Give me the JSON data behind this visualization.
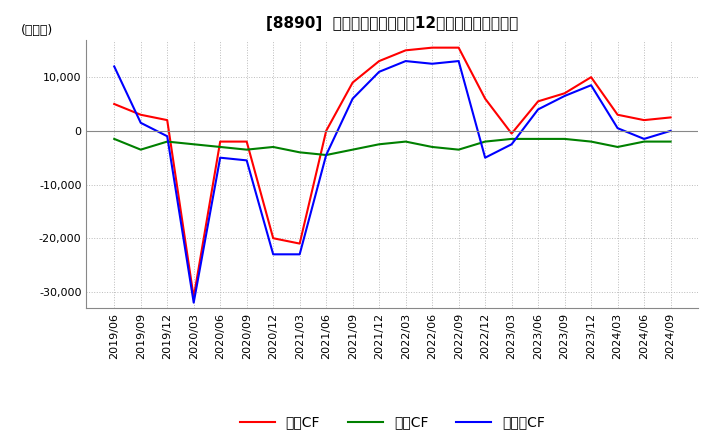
{
  "title": "[8890]  キャッシュフローの12か月移動合計の推移",
  "ylabel": "(百万円)",
  "ylim": [
    -33000,
    17000
  ],
  "yticks": [
    -30000,
    -20000,
    -10000,
    0,
    10000
  ],
  "line_colors": {
    "営業CF": "#ff0000",
    "投資CF": "#008000",
    "フリーCF": "#0000ff"
  },
  "dates": [
    "2019/06",
    "2019/09",
    "2019/12",
    "2020/03",
    "2020/06",
    "2020/09",
    "2020/12",
    "2021/03",
    "2021/06",
    "2021/09",
    "2021/12",
    "2022/03",
    "2022/06",
    "2022/09",
    "2022/12",
    "2023/03",
    "2023/06",
    "2023/09",
    "2023/12",
    "2024/03",
    "2024/06",
    "2024/09"
  ],
  "営業CF": [
    5000,
    3000,
    2000,
    -31000,
    -2000,
    -2000,
    -20000,
    -21000,
    0,
    9000,
    13000,
    15000,
    15500,
    15500,
    6000,
    -500,
    5500,
    7000,
    10000,
    3000,
    2000,
    2500
  ],
  "投資CF": [
    -1500,
    -3500,
    -2000,
    -2500,
    -3000,
    -3500,
    -3000,
    -4000,
    -4500,
    -3500,
    -2500,
    -2000,
    -3000,
    -3500,
    -2000,
    -1500,
    -1500,
    -1500,
    -2000,
    -3000,
    -2000,
    -2000
  ],
  "フリーCF": [
    12000,
    1500,
    -1000,
    -32000,
    -5000,
    -5500,
    -23000,
    -23000,
    -4500,
    6000,
    11000,
    13000,
    12500,
    13000,
    -5000,
    -2500,
    4000,
    6500,
    8500,
    500,
    -1500,
    0
  ],
  "background_color": "#ffffff",
  "grid_color": "#bbbbbb",
  "grid_linestyle": "dotted",
  "title_fontsize": 11,
  "label_fontsize": 9,
  "tick_fontsize": 8,
  "legend_fontsize": 10
}
